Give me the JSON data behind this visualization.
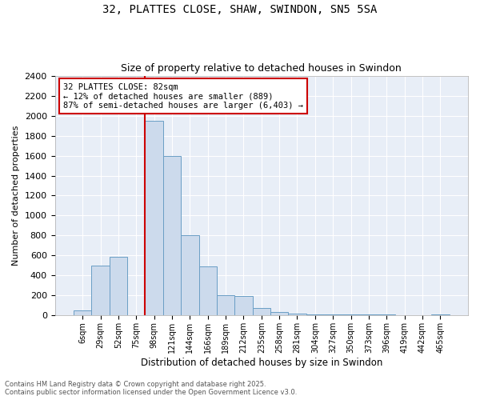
{
  "title": "32, PLATTES CLOSE, SHAW, SWINDON, SN5 5SA",
  "subtitle": "Size of property relative to detached houses in Swindon",
  "xlabel": "Distribution of detached houses by size in Swindon",
  "ylabel": "Number of detached properties",
  "footer_line1": "Contains HM Land Registry data © Crown copyright and database right 2025.",
  "footer_line2": "Contains public sector information licensed under the Open Government Licence v3.0.",
  "annotation_line1": "32 PLATTES CLOSE: 82sqm",
  "annotation_line2": "← 12% of detached houses are smaller (889)",
  "annotation_line3": "87% of semi-detached houses are larger (6,403) →",
  "bar_color": "#ccdaec",
  "bar_edge_color": "#6a9ec5",
  "redline_color": "#cc0000",
  "background_color": "#e8eef7",
  "grid_color": "#ffffff",
  "categories": [
    "6sqm",
    "29sqm",
    "52sqm",
    "75sqm",
    "98sqm",
    "121sqm",
    "144sqm",
    "166sqm",
    "189sqm",
    "212sqm",
    "235sqm",
    "258sqm",
    "281sqm",
    "304sqm",
    "327sqm",
    "350sqm",
    "373sqm",
    "396sqm",
    "419sqm",
    "442sqm",
    "465sqm"
  ],
  "values": [
    50,
    500,
    590,
    5,
    1950,
    1600,
    800,
    490,
    200,
    195,
    75,
    35,
    20,
    15,
    12,
    10,
    8,
    8,
    5,
    5,
    15
  ],
  "ylim": [
    0,
    2400
  ],
  "yticks": [
    0,
    200,
    400,
    600,
    800,
    1000,
    1200,
    1400,
    1600,
    1800,
    2000,
    2200,
    2400
  ],
  "redline_x": 3.5,
  "ann_text_fontsize": 7.5,
  "title_fontsize": 10,
  "subtitle_fontsize": 9
}
